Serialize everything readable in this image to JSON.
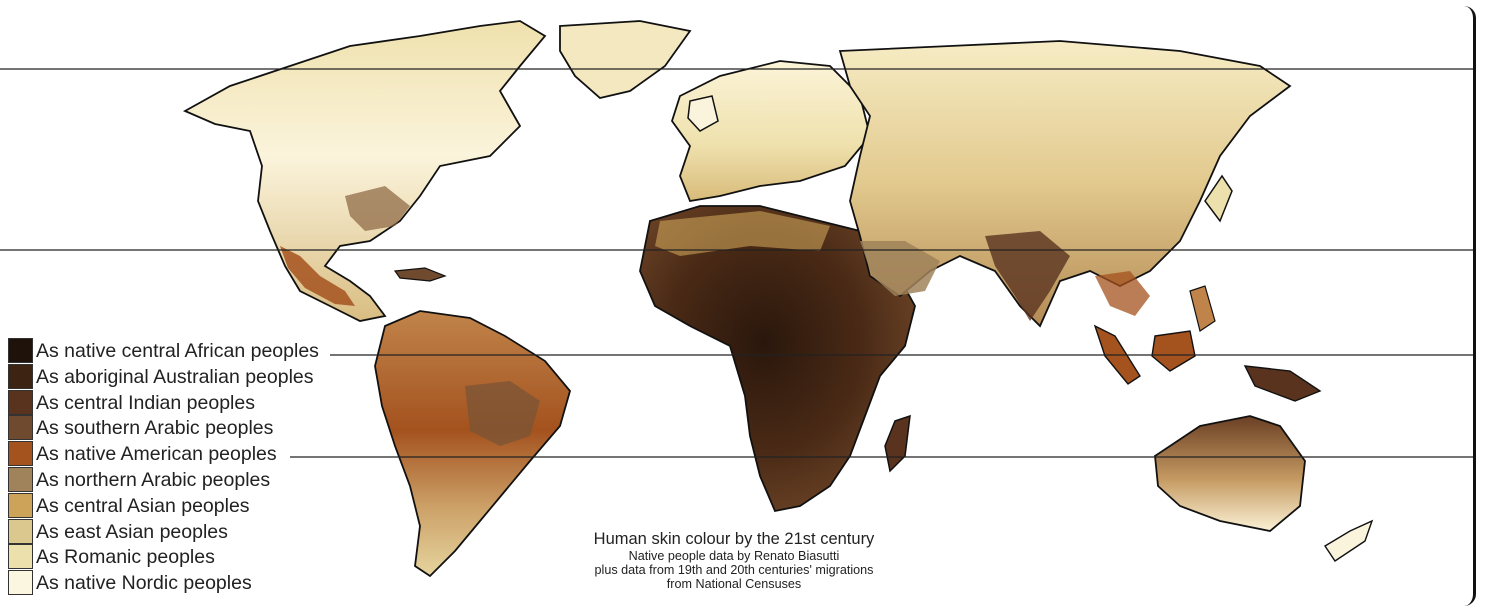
{
  "title": "Human skin colour by the 21st century",
  "credits": [
    "Native people data by Renato Biasutti",
    "plus data from 19th and 20th centuries' migrations",
    "from National Censuses"
  ],
  "legend": [
    {
      "label": "As native central African peoples",
      "color": "#1f120b"
    },
    {
      "label": "As aboriginal Australian peoples",
      "color": "#3d2412"
    },
    {
      "label": "As central Indian peoples",
      "color": "#5a331f"
    },
    {
      "label": "As southern Arabic peoples",
      "color": "#6f4a2e"
    },
    {
      "label": "As native American peoples",
      "color": "#a4521e"
    },
    {
      "label": "As northern Arabic peoples",
      "color": "#a0835a"
    },
    {
      "label": "As central Asian peoples",
      "color": "#cda359"
    },
    {
      "label": "As east Asian peoples",
      "color": "#dbc88f"
    },
    {
      "label": "As Romanic peoples",
      "color": "#ece1ad"
    },
    {
      "label": "As native Nordic peoples",
      "color": "#fbf6df"
    }
  ],
  "colors": {
    "ocean": "#ffffff",
    "outline": "#111111",
    "gridline": "#222222"
  }
}
